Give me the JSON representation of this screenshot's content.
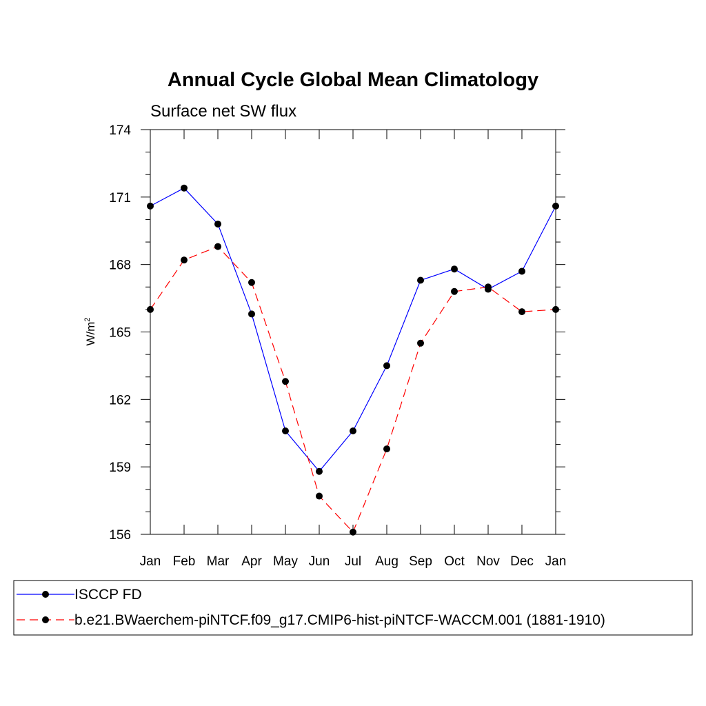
{
  "chart_data": {
    "type": "line",
    "title": "Annual Cycle Global Mean Climatology",
    "subtitle": "Surface net SW flux",
    "ylabel": "W/m",
    "ylabel_sup": "2",
    "xlabel": "",
    "categories": [
      "Jan",
      "Feb",
      "Mar",
      "Apr",
      "May",
      "Jun",
      "Jul",
      "Aug",
      "Sep",
      "Oct",
      "Nov",
      "Dec",
      "Jan"
    ],
    "ylim": [
      156,
      174
    ],
    "yticks": [
      "156",
      "159",
      "162",
      "165",
      "168",
      "171",
      "174"
    ],
    "series": [
      {
        "name": "ISCCP FD",
        "color": "#0000ff",
        "dash": "solid",
        "values": [
          170.6,
          171.4,
          169.8,
          165.8,
          160.6,
          158.8,
          160.6,
          163.5,
          167.3,
          167.8,
          166.9,
          167.7,
          170.6
        ]
      },
      {
        "name": "b.e21.BWaerchem-piNTCF.f09_g17.CMIP6-hist-piNTCF-WACCM.001 (1881-1910)",
        "color": "#ff0000",
        "dash": "dashed",
        "values": [
          166.0,
          168.2,
          168.8,
          167.2,
          162.8,
          157.7,
          156.1,
          159.8,
          164.5,
          166.8,
          167.0,
          165.9,
          166.0
        ]
      }
    ],
    "grid": false,
    "legend_position": "bottom"
  }
}
